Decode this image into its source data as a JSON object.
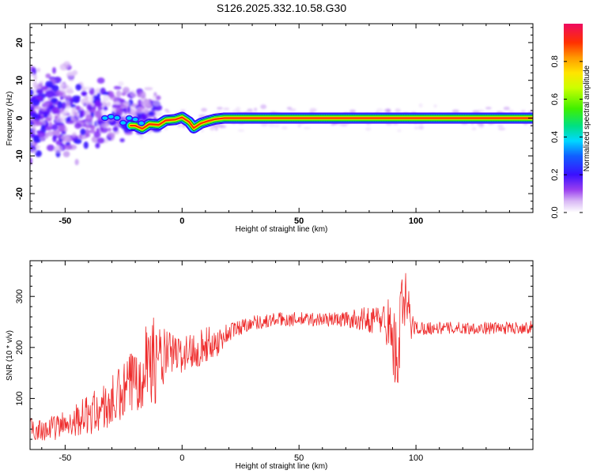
{
  "title": "S126.2025.332.10.58.G30",
  "chart_data": [
    {
      "type": "heatmap",
      "xlabel": "Height of straight line (km)",
      "ylabel": "Frequency (Hz)",
      "xlim": [
        -65,
        150
      ],
      "ylim": [
        -25,
        25
      ],
      "xticks": [
        -50,
        0,
        50,
        100
      ],
      "yticks": [
        20,
        10,
        0,
        -10,
        -20
      ],
      "ridge": [
        {
          "x": -20,
          "y": -2.0
        },
        {
          "x": -17,
          "y": -2.8
        },
        {
          "x": -14,
          "y": -1.6
        },
        {
          "x": -10,
          "y": -1.8
        },
        {
          "x": -7,
          "y": -0.6
        },
        {
          "x": -3,
          "y": -0.4
        },
        {
          "x": 0,
          "y": 0.2
        },
        {
          "x": 3,
          "y": -1.0
        },
        {
          "x": 5,
          "y": -2.6
        },
        {
          "x": 8,
          "y": -1.4
        },
        {
          "x": 11,
          "y": -0.8
        },
        {
          "x": 14,
          "y": -0.3
        },
        {
          "x": 18,
          "y": 0.0
        },
        {
          "x": 150,
          "y": 0.0
        }
      ],
      "colorbar": {
        "label": "Normalized spectral amplitude",
        "range": [
          0,
          1
        ],
        "ticks": [
          0.0,
          0.2,
          0.4,
          0.6,
          0.8
        ],
        "tick_labels": [
          "0.0",
          "0.2",
          "0.4",
          "0.6",
          "0.8"
        ]
      }
    },
    {
      "type": "line",
      "xlabel": "Height of straight line (km)",
      "ylabel": "SNR (10 * v/v)",
      "xlim": [
        -65,
        150
      ],
      "ylim": [
        0,
        370
      ],
      "xticks": [
        -50,
        0,
        50,
        100
      ],
      "yticks": [
        100,
        200,
        300
      ],
      "series": [
        {
          "name": "SNR",
          "color": "#ee2a2a",
          "x": [
            -65,
            -60,
            -55,
            -50,
            -45,
            -40,
            -35,
            -30,
            -25,
            -20,
            -15,
            -10,
            -5,
            0,
            5,
            10,
            15,
            20,
            25,
            30,
            35,
            40,
            45,
            50,
            55,
            60,
            65,
            70,
            75,
            80,
            85,
            88,
            90,
            92,
            94,
            96,
            98,
            100,
            110,
            120,
            130,
            140,
            150
          ],
          "y": [
            40,
            40,
            42,
            50,
            60,
            68,
            78,
            90,
            110,
            140,
            180,
            170,
            190,
            185,
            195,
            205,
            210,
            230,
            240,
            250,
            250,
            255,
            255,
            255,
            255,
            255,
            255,
            255,
            255,
            255,
            255,
            250,
            215,
            175,
            270,
            290,
            245,
            238,
            238,
            238,
            238,
            238,
            240
          ],
          "amplitude": [
            22,
            22,
            24,
            28,
            32,
            40,
            45,
            55,
            60,
            70,
            90,
            80,
            40,
            36,
            40,
            36,
            28,
            20,
            16,
            14,
            14,
            14,
            14,
            14,
            14,
            14,
            14,
            16,
            20,
            26,
            30,
            50,
            70,
            90,
            80,
            60,
            30,
            14,
            12,
            12,
            12,
            12,
            12
          ]
        }
      ]
    }
  ],
  "colors": {
    "line": "#ee2a2a",
    "axis": "#000000",
    "background": "#ffffff"
  }
}
